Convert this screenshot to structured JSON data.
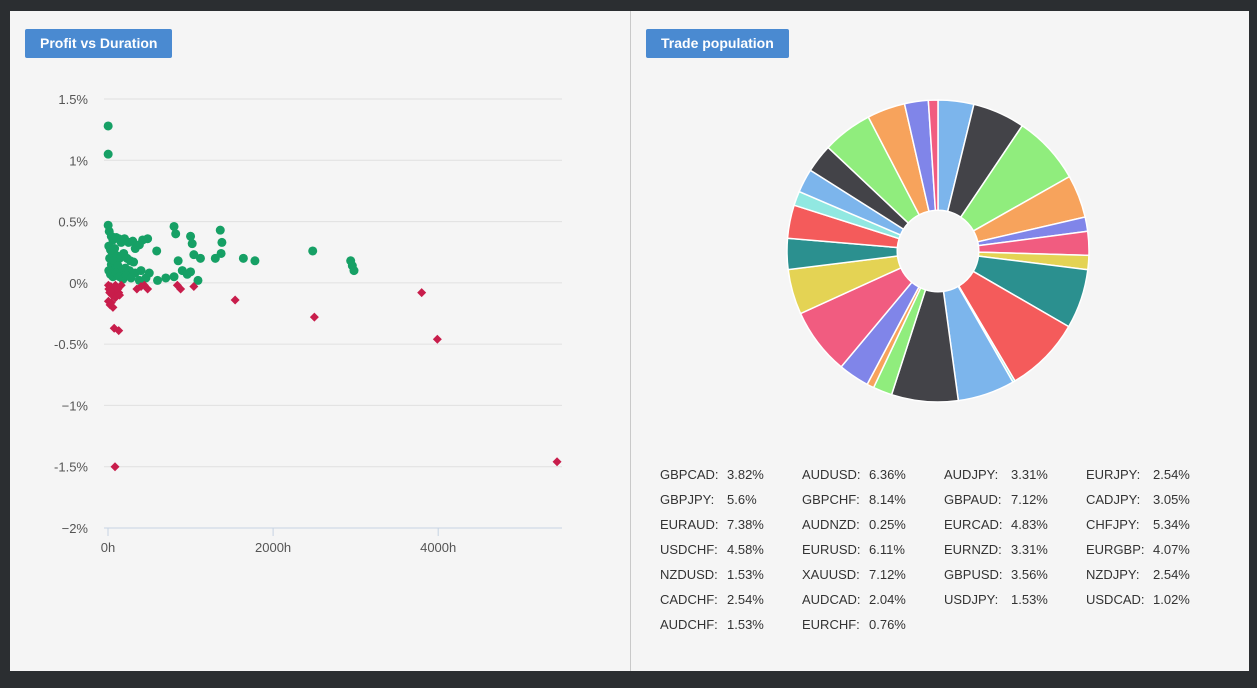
{
  "panels": {
    "scatter_title": "Profit vs Duration",
    "pie_title": "Trade population"
  },
  "colors": {
    "win": "#16a065",
    "loss": "#c81d4b",
    "title_bg": "#4a8ad1",
    "grid": "#e0e0e0",
    "axis": "#c6d3e3"
  },
  "chart_data": [
    {
      "type": "scatter",
      "title": "Profit vs Duration",
      "xlabel": "",
      "ylabel": "",
      "xlim": [
        0,
        5500
      ],
      "ylim": [
        -2,
        1.5
      ],
      "x_ticks": [
        0,
        2000,
        4000
      ],
      "x_tick_labels": [
        "0h",
        "2000h",
        "4000h"
      ],
      "y_ticks": [
        1.5,
        1,
        0.5,
        0,
        -0.5,
        -1,
        -1.5,
        -2
      ],
      "y_tick_labels": [
        "1.5%",
        "1%",
        "0.5%",
        "0%",
        "-0.5%",
        "−1%",
        "-1.5%",
        "−2%"
      ],
      "grid": true,
      "series": [
        {
          "marker": "circle",
          "color": "#16a065",
          "points": [
            [
              2,
              1.28
            ],
            [
              2,
              1.05
            ],
            [
              2,
              0.47
            ],
            [
              15,
              0.42
            ],
            [
              40,
              0.38
            ],
            [
              60,
              0.35
            ],
            [
              100,
              0.37
            ],
            [
              130,
              0.36
            ],
            [
              160,
              0.33
            ],
            [
              200,
              0.36
            ],
            [
              250,
              0.33
            ],
            [
              300,
              0.34
            ],
            [
              330,
              0.28
            ],
            [
              380,
              0.31
            ],
            [
              420,
              0.35
            ],
            [
              480,
              0.36
            ],
            [
              10,
              0.3
            ],
            [
              30,
              0.27
            ],
            [
              50,
              0.25
            ],
            [
              80,
              0.28
            ],
            [
              110,
              0.22
            ],
            [
              140,
              0.2
            ],
            [
              190,
              0.24
            ],
            [
              230,
              0.2
            ],
            [
              270,
              0.18
            ],
            [
              310,
              0.17
            ],
            [
              20,
              0.2
            ],
            [
              40,
              0.15
            ],
            [
              70,
              0.18
            ],
            [
              90,
              0.12
            ],
            [
              120,
              0.14
            ],
            [
              160,
              0.1
            ],
            [
              210,
              0.12
            ],
            [
              260,
              0.1
            ],
            [
              330,
              0.08
            ],
            [
              400,
              0.1
            ],
            [
              10,
              0.1
            ],
            [
              30,
              0.07
            ],
            [
              60,
              0.05
            ],
            [
              100,
              0.08
            ],
            [
              140,
              0.05
            ],
            [
              180,
              0.03
            ],
            [
              220,
              0.06
            ],
            [
              280,
              0.04
            ],
            [
              380,
              0.02
            ],
            [
              460,
              0.04
            ],
            [
              500,
              0.08
            ],
            [
              600,
              0.02
            ],
            [
              700,
              0.04
            ],
            [
              800,
              0.46
            ],
            [
              820,
              0.4
            ],
            [
              1000,
              0.38
            ],
            [
              1020,
              0.32
            ],
            [
              1120,
              0.2
            ],
            [
              1360,
              0.43
            ],
            [
              1380,
              0.33
            ],
            [
              1300,
              0.2
            ],
            [
              1370,
              0.24
            ],
            [
              1040,
              0.23
            ],
            [
              590,
              0.26
            ],
            [
              850,
              0.18
            ],
            [
              900,
              0.1
            ],
            [
              960,
              0.07
            ],
            [
              1000,
              0.09
            ],
            [
              1090,
              0.02
            ],
            [
              800,
              0.05
            ],
            [
              1640,
              0.2
            ],
            [
              1780,
              0.18
            ],
            [
              2480,
              0.26
            ],
            [
              2940,
              0.18
            ],
            [
              2960,
              0.14
            ],
            [
              2980,
              0.1
            ]
          ]
        },
        {
          "marker": "diamond",
          "color": "#c81d4b",
          "points": [
            [
              5,
              -0.02
            ],
            [
              10,
              -0.05
            ],
            [
              20,
              -0.08
            ],
            [
              35,
              -0.03
            ],
            [
              50,
              -0.1
            ],
            [
              70,
              -0.06
            ],
            [
              90,
              -0.02
            ],
            [
              110,
              -0.04
            ],
            [
              130,
              -0.08
            ],
            [
              5,
              -0.15
            ],
            [
              25,
              -0.18
            ],
            [
              60,
              -0.2
            ],
            [
              90,
              -0.12
            ],
            [
              120,
              -0.05
            ],
            [
              140,
              -0.1
            ],
            [
              160,
              -0.02
            ],
            [
              40,
              -0.16
            ],
            [
              30,
              -0.07
            ],
            [
              75,
              -0.37
            ],
            [
              130,
              -0.39
            ],
            [
              85,
              -1.5
            ],
            [
              350,
              -0.05
            ],
            [
              400,
              -0.03
            ],
            [
              440,
              -0.02
            ],
            [
              480,
              -0.05
            ],
            [
              840,
              -0.02
            ],
            [
              880,
              -0.05
            ],
            [
              1040,
              -0.03
            ],
            [
              1540,
              -0.14
            ],
            [
              2500,
              -0.28
            ],
            [
              3800,
              -0.08
            ],
            [
              3990,
              -0.46
            ],
            [
              5440,
              -1.46
            ]
          ]
        }
      ]
    },
    {
      "type": "pie",
      "title": "Trade population",
      "start_angle_deg": 0,
      "inner_radius_pct": 0.27,
      "slices": [
        {
          "label": "GBPCAD",
          "value": 3.82,
          "display": "3.82%",
          "color": "#7cb5ec"
        },
        {
          "label": "GBPJPY",
          "value": 5.6,
          "display": "5.6%",
          "color": "#434348"
        },
        {
          "label": "EURAUD",
          "value": 7.38,
          "display": "7.38%",
          "color": "#90ed7d"
        },
        {
          "label": "USDCHF",
          "value": 4.58,
          "display": "4.58%",
          "color": "#f7a35c"
        },
        {
          "label": "NZDUSD",
          "value": 1.53,
          "display": "1.53%",
          "color": "#8085e9"
        },
        {
          "label": "CADCHF",
          "value": 2.54,
          "display": "2.54%",
          "color": "#f15c80"
        },
        {
          "label": "AUDCHF",
          "value": 1.53,
          "display": "1.53%",
          "color": "#e4d354"
        },
        {
          "label": "AUDUSD",
          "value": 6.36,
          "display": "6.36%",
          "color": "#2b908f"
        },
        {
          "label": "GBPCHF",
          "value": 8.14,
          "display": "8.14%",
          "color": "#f45b5b"
        },
        {
          "label": "AUDNZD",
          "value": 0.25,
          "display": "0.25%",
          "color": "#91e8e1"
        },
        {
          "label": "EURUSD",
          "value": 6.11,
          "display": "6.11%",
          "color": "#7cb5ec"
        },
        {
          "label": "XAUUSD",
          "value": 7.12,
          "display": "7.12%",
          "color": "#434348"
        },
        {
          "label": "AUDCAD",
          "value": 2.04,
          "display": "2.04%",
          "color": "#90ed7d"
        },
        {
          "label": "EURCHF",
          "value": 0.76,
          "display": "0.76%",
          "color": "#f7a35c"
        },
        {
          "label": "AUDJPY",
          "value": 3.31,
          "display": "3.31%",
          "color": "#8085e9"
        },
        {
          "label": "GBPAUD",
          "value": 7.12,
          "display": "7.12%",
          "color": "#f15c80"
        },
        {
          "label": "EURCAD",
          "value": 4.83,
          "display": "4.83%",
          "color": "#e4d354"
        },
        {
          "label": "EURNZD",
          "value": 3.31,
          "display": "3.31%",
          "color": "#2b908f"
        },
        {
          "label": "GBPUSD",
          "value": 3.56,
          "display": "3.56%",
          "color": "#f45b5b"
        },
        {
          "label": "USDJPY",
          "value": 1.53,
          "display": "1.53%",
          "color": "#91e8e1"
        },
        {
          "label": "EURJPY",
          "value": 2.54,
          "display": "2.54%",
          "color": "#7cb5ec"
        },
        {
          "label": "CADJPY",
          "value": 3.05,
          "display": "3.05%",
          "color": "#434348"
        },
        {
          "label": "CHFJPY",
          "value": 5.34,
          "display": "5.34%",
          "color": "#90ed7d"
        },
        {
          "label": "EURGBP",
          "value": 4.07,
          "display": "4.07%",
          "color": "#f7a35c"
        },
        {
          "label": "NZDJPY",
          "value": 2.54,
          "display": "2.54%",
          "color": "#8085e9"
        },
        {
          "label": "USDCAD",
          "value": 1.02,
          "display": "1.02%",
          "color": "#f15c80"
        }
      ]
    }
  ],
  "legend": {
    "columns": [
      [
        {
          "name": "GBPCAD:",
          "value": "3.82%"
        },
        {
          "name": "GBPJPY:",
          "value": "5.6%"
        },
        {
          "name": "EURAUD:",
          "value": "7.38%"
        },
        {
          "name": "USDCHF:",
          "value": "4.58%"
        },
        {
          "name": "NZDUSD:",
          "value": "1.53%"
        },
        {
          "name": "CADCHF:",
          "value": "2.54%"
        },
        {
          "name": "AUDCHF:",
          "value": "1.53%"
        }
      ],
      [
        {
          "name": "AUDUSD:",
          "value": "6.36%"
        },
        {
          "name": "GBPCHF:",
          "value": "8.14%"
        },
        {
          "name": "AUDNZD:",
          "value": "0.25%"
        },
        {
          "name": "EURUSD:",
          "value": "6.11%"
        },
        {
          "name": "XAUUSD:",
          "value": "7.12%"
        },
        {
          "name": "AUDCAD:",
          "value": "2.04%"
        },
        {
          "name": "EURCHF:",
          "value": "0.76%"
        }
      ],
      [
        {
          "name": "AUDJPY:",
          "value": "3.31%"
        },
        {
          "name": "GBPAUD:",
          "value": "7.12%"
        },
        {
          "name": "EURCAD:",
          "value": "4.83%"
        },
        {
          "name": "EURNZD:",
          "value": "3.31%"
        },
        {
          "name": "GBPUSD:",
          "value": "3.56%"
        },
        {
          "name": "USDJPY:",
          "value": "1.53%"
        }
      ],
      [
        {
          "name": "EURJPY:",
          "value": "2.54%"
        },
        {
          "name": "CADJPY:",
          "value": "3.05%"
        },
        {
          "name": "CHFJPY:",
          "value": "5.34%"
        },
        {
          "name": "EURGBP:",
          "value": "4.07%"
        },
        {
          "name": "NZDJPY:",
          "value": "2.54%"
        },
        {
          "name": "USDCAD:",
          "value": "1.02%"
        }
      ]
    ]
  }
}
